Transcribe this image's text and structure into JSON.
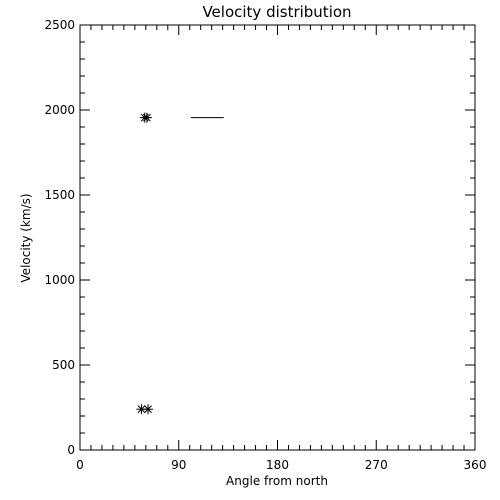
{
  "chart_data": {
    "type": "scatter",
    "title": "Velocity distribution",
    "xlabel": "Angle from north",
    "ylabel": "Velocity (km/s)",
    "xlim": [
      0,
      360
    ],
    "ylim": [
      0,
      2500
    ],
    "xticks": [
      0,
      90,
      180,
      270,
      360
    ],
    "yticks": [
      0,
      500,
      1000,
      1500,
      2000,
      2500
    ],
    "x_minor_step": 10,
    "y_minor_step": 100,
    "grid": false,
    "marker": "asterisk",
    "series": [
      {
        "points": [
          {
            "x": 59,
            "y": 1955
          },
          {
            "x": 61,
            "y": 1955
          },
          {
            "x": 56,
            "y": 240
          },
          {
            "x": 62,
            "y": 240
          }
        ]
      }
    ],
    "segments": [
      {
        "x1": 101,
        "x2": 131,
        "y": 1955
      }
    ]
  }
}
